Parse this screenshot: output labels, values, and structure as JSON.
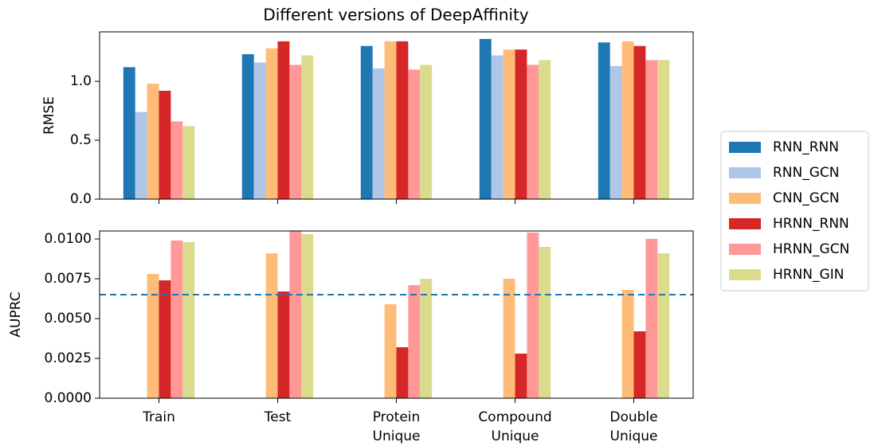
{
  "chart_data": [
    {
      "type": "bar",
      "title": "Different versions of DeepAffinity",
      "ylabel": "RMSE",
      "ylim": [
        0,
        1.42
      ],
      "yticks": [
        {
          "value": 0,
          "label": "0.0"
        },
        0.5,
        {
          "value": 1,
          "label": "1.0"
        }
      ],
      "series": [
        {
          "name": "RNN_RNN",
          "color": "#1f77b4",
          "values": [
            1.12,
            1.23,
            1.3,
            1.36,
            1.33
          ]
        },
        {
          "name": "RNN_GCN",
          "color": "#aec7e8",
          "values": [
            0.74,
            1.16,
            1.11,
            1.22,
            1.13
          ]
        },
        {
          "name": "CNN_GCN",
          "color": "#ffbb78",
          "values": [
            0.98,
            1.28,
            1.34,
            1.27,
            1.34
          ]
        },
        {
          "name": "HRNN_RNN",
          "color": "#d62728",
          "values": [
            0.92,
            1.34,
            1.34,
            1.27,
            1.3
          ]
        },
        {
          "name": "HRNN_GCN",
          "color": "#ff9896",
          "values": [
            0.66,
            1.14,
            1.1,
            1.14,
            1.18
          ]
        },
        {
          "name": "HRNN_GIN",
          "color": "#dbdb8d",
          "values": [
            0.62,
            1.22,
            1.14,
            1.18,
            1.18
          ]
        }
      ]
    },
    {
      "type": "bar",
      "ylabel": "AUPRC",
      "categories": [
        "Train",
        "Test",
        "Protein Unique",
        "Compound Unique",
        "Double Unique"
      ],
      "ylim": [
        0,
        0.0105
      ],
      "yticks": [
        {
          "value": 0,
          "label": "0.0000"
        },
        {
          "value": 0.0025,
          "label": "0.0025"
        },
        {
          "value": 0.005,
          "label": "0.0050"
        },
        {
          "value": 0.0075,
          "label": "0.0075"
        },
        {
          "value": 0.01,
          "label": "0.0100"
        }
      ],
      "hline": {
        "y": 0.0065,
        "color": "#1f77b4",
        "style": "dashed"
      },
      "series": [
        {
          "name": "RNN_RNN",
          "color": "#1f77b4",
          "values": [
            null,
            null,
            null,
            null,
            null
          ]
        },
        {
          "name": "RNN_GCN",
          "color": "#aec7e8",
          "values": [
            null,
            null,
            null,
            null,
            null
          ]
        },
        {
          "name": "CNN_GCN",
          "color": "#ffbb78",
          "values": [
            0.0078,
            0.0091,
            0.0059,
            0.0075,
            0.0068
          ]
        },
        {
          "name": "HRNN_RNN",
          "color": "#d62728",
          "values": [
            0.0074,
            0.0067,
            0.0032,
            0.0028,
            0.0042
          ]
        },
        {
          "name": "HRNN_GCN",
          "color": "#ff9896",
          "values": [
            0.0099,
            0.0105,
            0.0071,
            0.0104,
            0.01
          ]
        },
        {
          "name": "HRNN_GIN",
          "color": "#dbdb8d",
          "values": [
            0.0098,
            0.0103,
            0.0075,
            0.0095,
            0.0091
          ]
        }
      ]
    }
  ]
}
